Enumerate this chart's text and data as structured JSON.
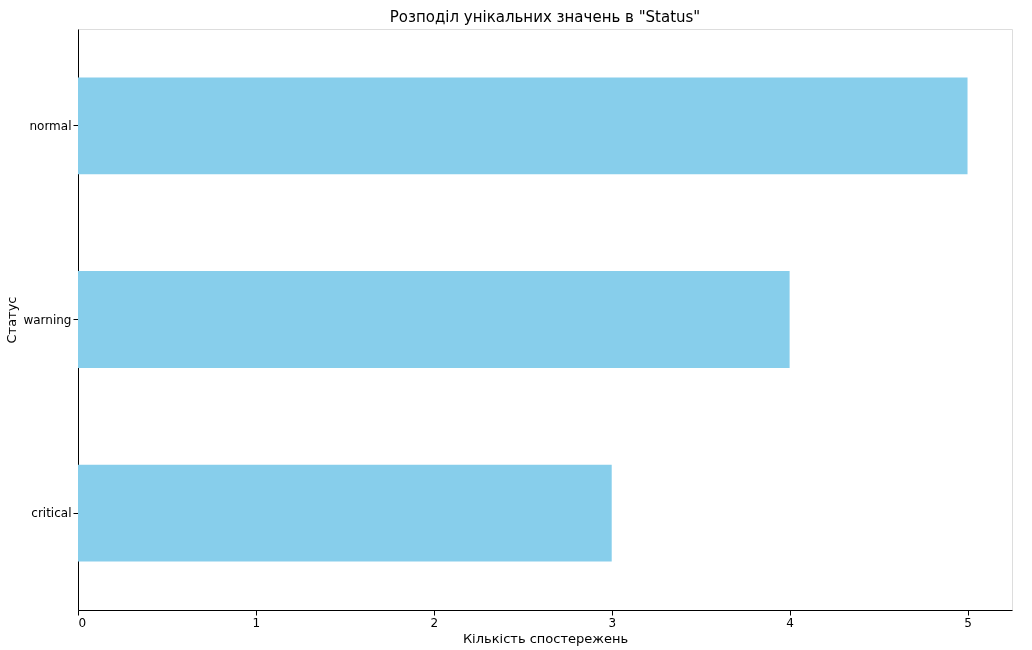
{
  "chart_data": {
    "type": "bar",
    "orientation": "horizontal",
    "title": "Розподіл унікальних значень в \"Status\"",
    "xlabel": "Кількість спостережень",
    "ylabel": "Статус",
    "categories": [
      "normal",
      "warning",
      "critical"
    ],
    "values": [
      5,
      4,
      3
    ],
    "color": "#87ceeb",
    "xlim": [
      0,
      5.25
    ],
    "xticks": [
      0,
      1,
      2,
      3,
      4,
      5
    ],
    "grid": false,
    "legend": false
  }
}
